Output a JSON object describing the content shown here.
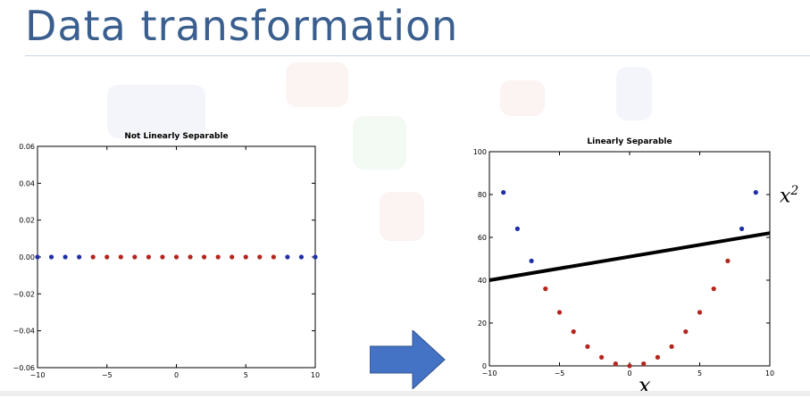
{
  "slide": {
    "title": "Data transformation"
  },
  "colors": {
    "title": "#3a5f8f",
    "blue_points": "#1f2fa8",
    "red_points": "#b5241d",
    "arrow": "#4472c4",
    "decision_line": "#000000"
  },
  "annotations": {
    "y_label": "x",
    "y_label_sup": "2",
    "x_label": "x"
  },
  "chart_data": [
    {
      "type": "scatter",
      "title": "Not Linearly Separable",
      "xlim": [
        -10,
        10
      ],
      "ylim": [
        -0.06,
        0.06
      ],
      "xticks": [
        -10,
        -5,
        0,
        5,
        10
      ],
      "yticks": [
        -0.06,
        -0.04,
        -0.02,
        0.0,
        0.02,
        0.04,
        0.06
      ],
      "xtick_labels": [
        "−10",
        "−5",
        "0",
        "5",
        "10"
      ],
      "ytick_labels": [
        "−0.06",
        "−0.04",
        "−0.02",
        "0.00",
        "0.02",
        "0.04",
        "0.06"
      ],
      "grid": false,
      "series": [
        {
          "color": "#1f2fa8",
          "x": [
            -10,
            -9,
            -8,
            -7,
            8,
            9,
            10
          ],
          "y": [
            0,
            0,
            0,
            0,
            0,
            0,
            0
          ]
        },
        {
          "color": "#b5241d",
          "x": [
            -6,
            -5,
            -4,
            -3,
            -2,
            -1,
            0,
            1,
            2,
            3,
            4,
            5,
            6,
            7
          ],
          "y": [
            0,
            0,
            0,
            0,
            0,
            0,
            0,
            0,
            0,
            0,
            0,
            0,
            0,
            0
          ]
        }
      ]
    },
    {
      "type": "scatter",
      "title": "Linearly Separable",
      "xlim": [
        -10,
        10
      ],
      "ylim": [
        0,
        100
      ],
      "xticks": [
        -10,
        -5,
        0,
        5,
        10
      ],
      "yticks": [
        0,
        20,
        40,
        60,
        80,
        100
      ],
      "xtick_labels": [
        "−10",
        "−5",
        "0",
        "5",
        "10"
      ],
      "ytick_labels": [
        "0",
        "20",
        "40",
        "60",
        "80",
        "100"
      ],
      "grid": false,
      "series": [
        {
          "color": "#1f2fa8",
          "x": [
            -9,
            -8,
            -7,
            8,
            9
          ],
          "y": [
            81,
            64,
            49,
            64,
            81
          ]
        },
        {
          "color": "#b5241d",
          "x": [
            -6,
            -5,
            -4,
            -3,
            -2,
            -1,
            0,
            1,
            2,
            3,
            4,
            5,
            6,
            7
          ],
          "y": [
            36,
            25,
            16,
            9,
            4,
            1,
            0,
            1,
            4,
            9,
            16,
            25,
            36,
            49
          ]
        }
      ],
      "line": {
        "color": "#000000",
        "x": [
          -10,
          10
        ],
        "y": [
          40,
          62
        ]
      }
    }
  ]
}
